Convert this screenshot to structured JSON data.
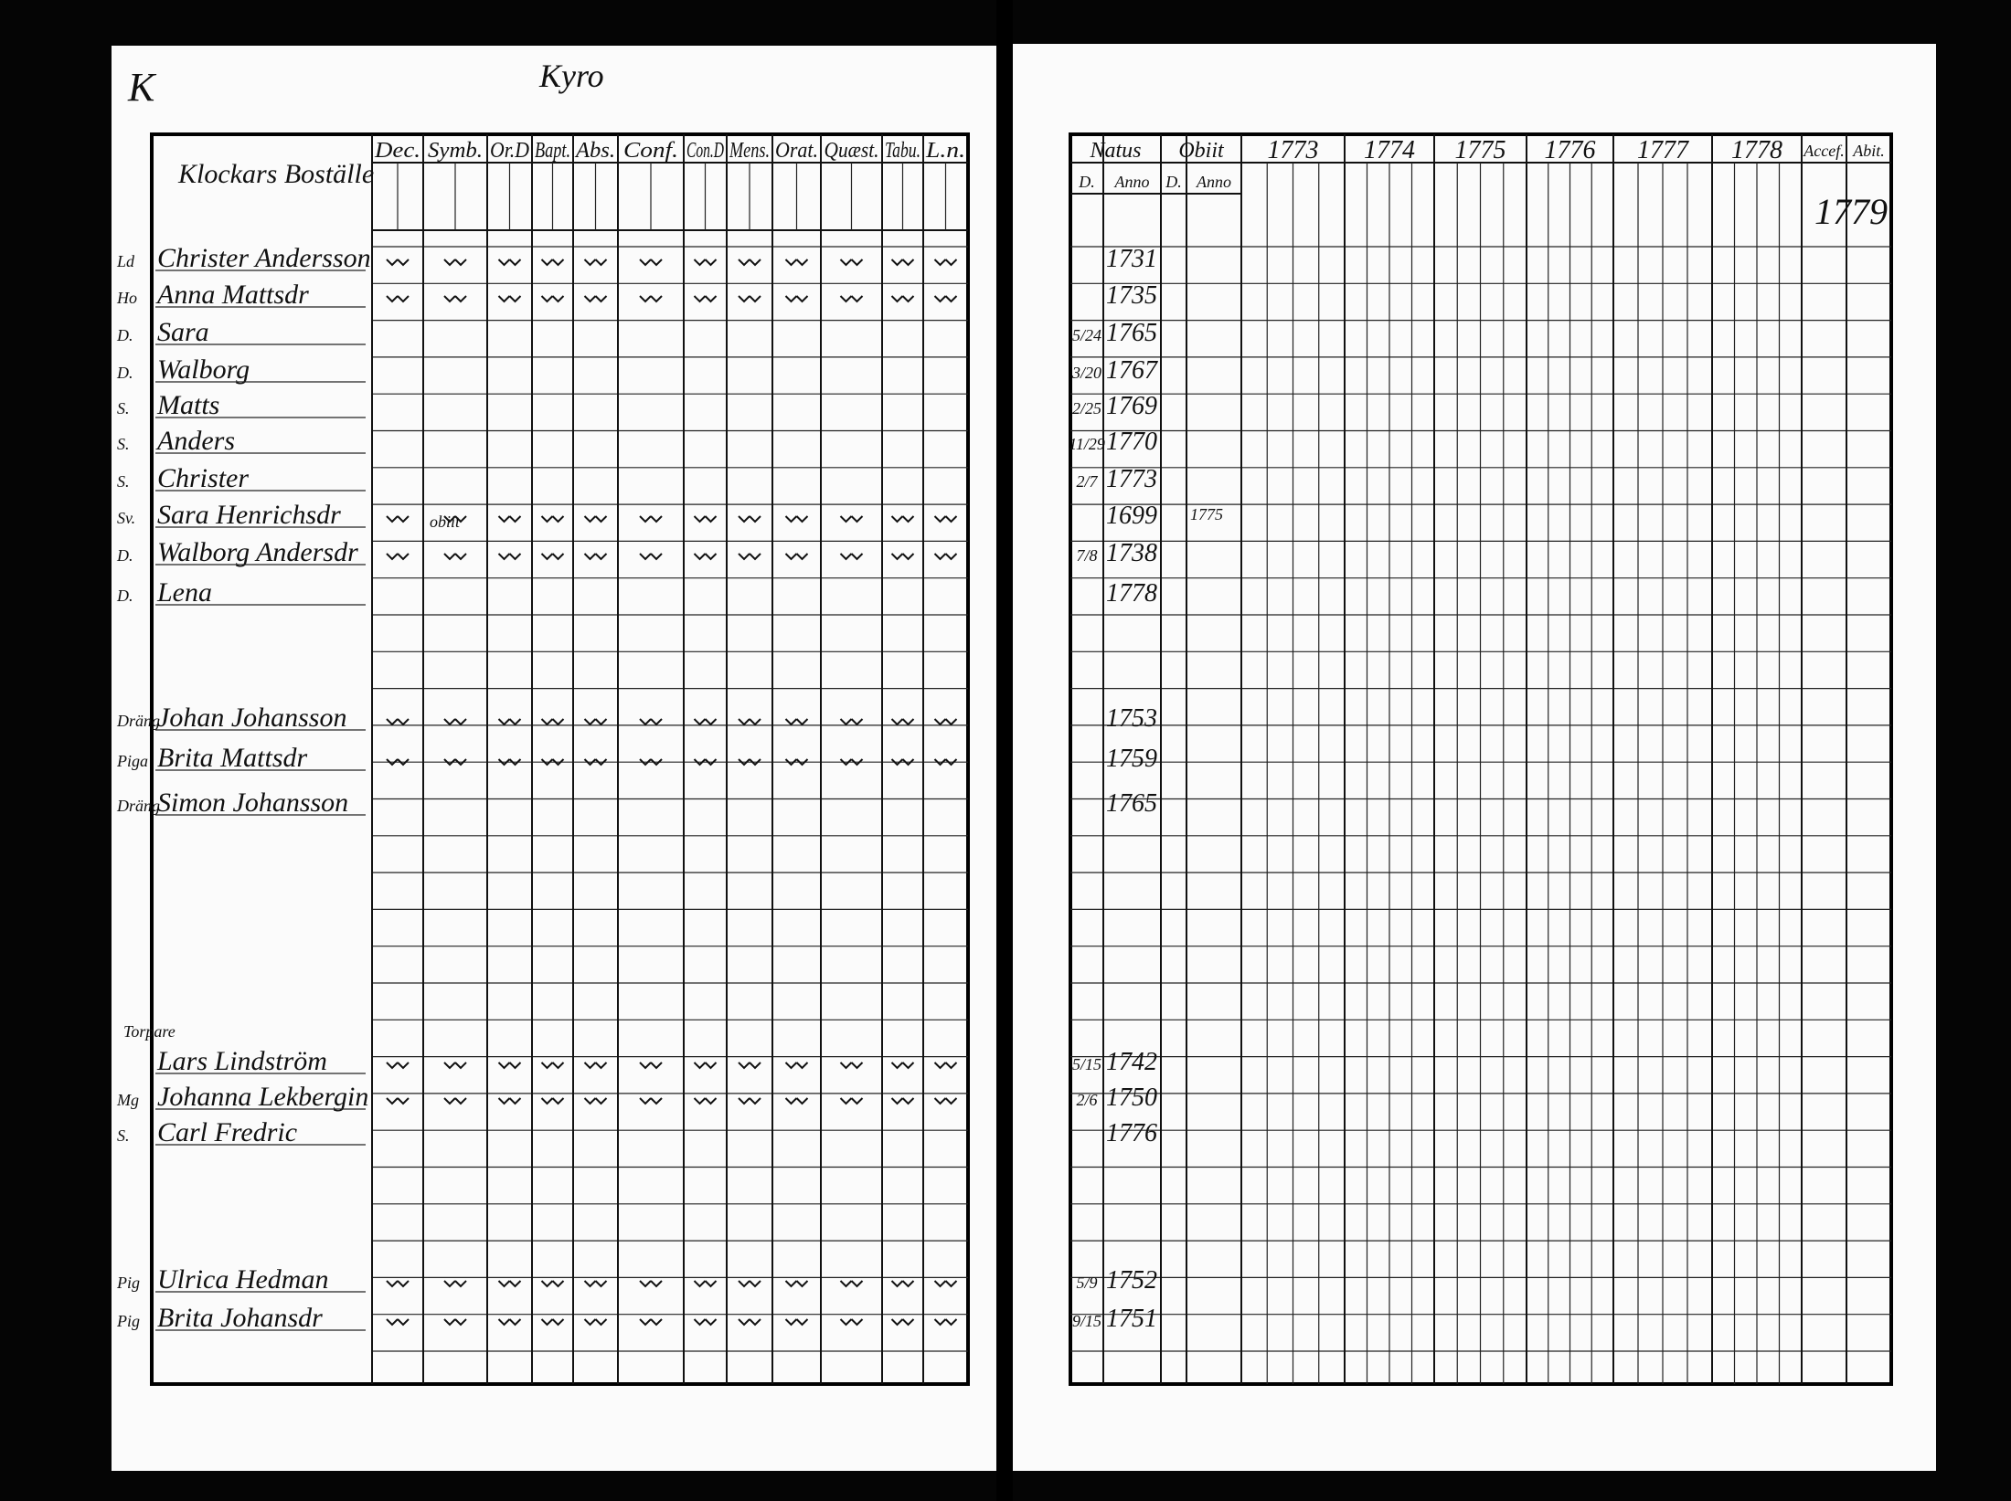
{
  "left_page": {
    "page_mark": "K",
    "parish": "Kyro",
    "header_label": "Klockars Boställe",
    "columns": [
      "Dec.",
      "Symb.",
      "Or.D",
      "Bapt.",
      "Abs.",
      "Conf.",
      "Con.D",
      "Mens.",
      "Orat.",
      "Quæst.",
      "Tabu.",
      "L.n."
    ],
    "obiit_note": "obiit",
    "section_label": "Torpare"
  },
  "right_page": {
    "natus": "Natus",
    "obiit": "Obiit",
    "subheaders": [
      "D.",
      "Anno",
      "D.",
      "Anno"
    ],
    "years": [
      "1773",
      "1774",
      "1775",
      "1776",
      "1777",
      "1778"
    ],
    "accessit": "Accef.",
    "abiit": "Abit.",
    "year_note": "1779"
  },
  "rows": [
    {
      "role": "Ld",
      "name": "Christer Andersson",
      "born": "1731"
    },
    {
      "role": "Ho",
      "name": "Anna Mattsdr",
      "born": "1735"
    },
    {
      "role": "D.",
      "name": "Sara",
      "born_day": "5/24",
      "born": "1765"
    },
    {
      "role": "D.",
      "name": "Walborg",
      "born_day": "3/20",
      "born": "1767"
    },
    {
      "role": "S.",
      "name": "Matts",
      "born_day": "2/25",
      "born": "1769"
    },
    {
      "role": "S.",
      "name": "Anders",
      "born_day": "11/29",
      "born": "1770"
    },
    {
      "role": "S.",
      "name": "Christer",
      "born_day": "2/7",
      "born": "1773"
    },
    {
      "role": "Sv.",
      "name": "Sara Henrichsdr",
      "born": "1699",
      "died": "1775"
    },
    {
      "role": "D.",
      "name": "Walborg Andersdr",
      "born_day": "7/8",
      "born": "1738"
    },
    {
      "role": "D.",
      "name": "Lena",
      "born": "1778"
    },
    {
      "role": "Dräng",
      "name": "Johan Johansson",
      "born": "1753"
    },
    {
      "role": "Piga",
      "name": "Brita Mattsdr",
      "born": "1759"
    },
    {
      "role": "Dräng",
      "name": "Simon Johansson",
      "born": "1765"
    },
    {
      "role": "",
      "name": "Lars Lindström",
      "born_day": "5/15",
      "born": "1742"
    },
    {
      "role": "Mg",
      "name": "Johanna Lekbergin",
      "born_day": "2/6",
      "born": "1750"
    },
    {
      "role": "S.",
      "name": "Carl Fredric",
      "born": "1776"
    },
    {
      "role": "Pig",
      "name": "Ulrica Hedman",
      "born_day": "5/9",
      "born": "1752"
    },
    {
      "role": "Pig",
      "name": "Brita Johansdr",
      "born_day": "9/15",
      "born": "1751"
    }
  ]
}
